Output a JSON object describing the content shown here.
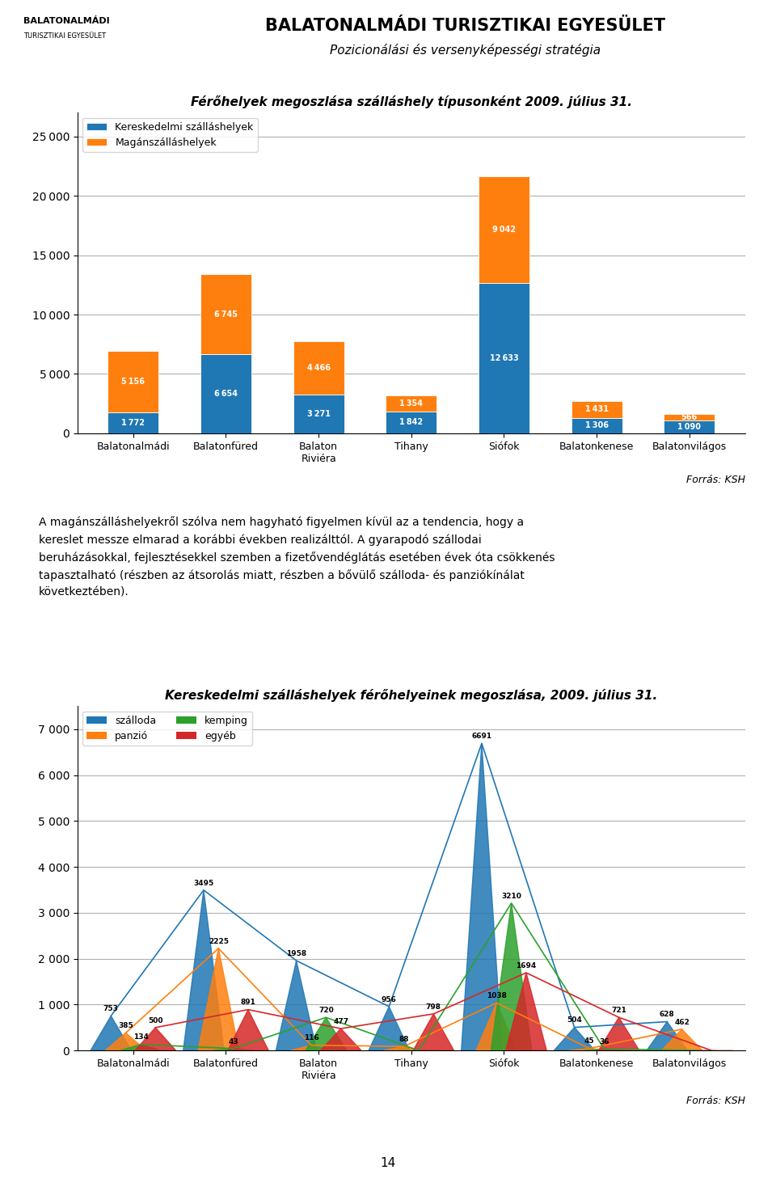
{
  "title": "BALATONALMÁDI TURISZTIKAI EGYESÜLET",
  "subtitle": "Pozicionálási és versenyképességi stratégia",
  "annotations": [
    "BALATONALMÁDI",
    "TURISZTIKAI EGYESÜLET",
    "A magánszálláshelyekről szólva nem hagyható figyelmen kívül az a tendencia, hogy a\nkereslet messze elmarad a korábbi években realizálttól. A gyarapodó szállodai\nberuházásokkal, fejlesztésekkel szemben a fizetővendéglátás esetében évek óta csökkenés\ntapasztalható (részben az átsorolás miatt, részben a bővülő szálloda- és panziókínálat\nkövetkeztében).",
    "14"
  ],
  "chart_data": [
    {
      "type": "bar",
      "stacked": true,
      "title": "Férőhelyek megoszlása szálláshely típusonként 2009. július 31.",
      "categories": [
        "Balatonalmádi",
        "Balatonfüred",
        "Balaton\nRiviéra",
        "Tihany",
        "Siófok",
        "Balatonkenese",
        "Balatonvilágos"
      ],
      "series": [
        {
          "name": "Kereskedelmi szálláshelyek",
          "values": [
            1772,
            6654,
            3271,
            1842,
            12633,
            1306,
            1090
          ],
          "value_labels": [
            "1 772",
            "6 654",
            "3 271",
            "1 842",
            "12 633",
            "1 306",
            "1 090"
          ]
        },
        {
          "name": "Magánszálláshelyek",
          "values": [
            5156,
            6745,
            4466,
            1354,
            9042,
            1431,
            566
          ],
          "value_labels": [
            "5 156",
            "6 745",
            "4 466",
            "1 354",
            "9 042",
            "1 431",
            "566"
          ]
        }
      ],
      "ylim": [
        0,
        27000
      ],
      "yticks": [
        0,
        {
          "value": 5000,
          "label": "5 000"
        },
        {
          "value": 10000,
          "label": "10 000"
        },
        {
          "value": 15000,
          "label": "15 000"
        },
        {
          "value": 20000,
          "label": "20 000"
        },
        {
          "value": 25000,
          "label": "25 000"
        }
      ],
      "grid": true,
      "legend": "upper left",
      "data_labels": true,
      "annotations": [
        "Forrás: KSH"
      ]
    },
    {
      "type": "spike",
      "title": "Kereskedelmi szálláshelyek férőhelyeinek megoszlása, 2009. július 31.",
      "categories": [
        "Balatonalmádi",
        "Balatonfüred",
        "Balaton\nRiviéra",
        "Tihany",
        "Siófok",
        "Balatonkenese",
        "Balatonvilágos"
      ],
      "series": [
        {
          "name": "szálloda",
          "values": [
            753,
            3495,
            1958,
            956,
            6691,
            504,
            628
          ],
          "value_labels": [
            "753",
            "3495",
            "1958",
            "956",
            "6691",
            "504",
            "628"
          ]
        },
        {
          "name": "panzió",
          "values": [
            385,
            2225,
            116,
            88,
            1038,
            45,
            462
          ],
          "value_labels": [
            "385",
            "2225",
            "116",
            "88",
            "1038",
            "45",
            "462"
          ]
        },
        {
          "name": "kemping",
          "values": [
            134,
            43,
            720,
            0,
            3210,
            36,
            0
          ],
          "value_labels": [
            "134",
            "43",
            "720",
            null,
            "3210",
            "36",
            null
          ]
        },
        {
          "name": "egyéb",
          "values": [
            500,
            891,
            477,
            798,
            1694,
            721,
            0
          ],
          "value_labels": [
            "500",
            "891",
            "477",
            "798",
            "1694",
            "721",
            null
          ]
        }
      ],
      "ylim": [
        0,
        7500
      ],
      "yticks": [
        0,
        {
          "value": 1000,
          "label": "1 000"
        },
        {
          "value": 2000,
          "label": "2 000"
        },
        {
          "value": 3000,
          "label": "3 000"
        },
        {
          "value": 4000,
          "label": "4 000"
        },
        {
          "value": 5000,
          "label": "5 000"
        },
        {
          "value": 6000,
          "label": "6 000"
        },
        {
          "value": 7000,
          "label": "7 000"
        }
      ],
      "grid": true,
      "legend": "upper left",
      "data_labels": true,
      "annotations": [
        "Forrás: KSH"
      ]
    }
  ]
}
